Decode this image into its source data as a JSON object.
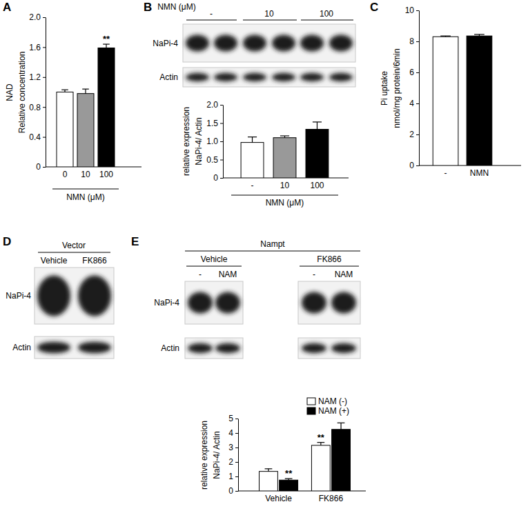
{
  "panels": [
    "A",
    "B",
    "C",
    "D",
    "E"
  ],
  "chart_data": [
    {
      "type": "bar",
      "y_label": [
        "NAD",
        "Relative concentration"
      ],
      "x_label": "NMN (μM)",
      "categories": [
        "0",
        "10",
        "100"
      ],
      "values": [
        1.0,
        0.98,
        1.59
      ],
      "errors": [
        0.03,
        0.06,
        0.05
      ],
      "significance": [
        null,
        null,
        "**"
      ],
      "colors": [
        "#ffffff",
        "#999999",
        "#000000"
      ],
      "ylim": [
        0,
        2
      ],
      "yticks": [
        0,
        0.4,
        0.8,
        1.2,
        1.6,
        {
          "value": 2,
          "label": "2.0"
        }
      ]
    },
    {
      "type": "bar",
      "y_label": [
        "relative expression",
        "NaPi-4/ Actin"
      ],
      "x_label": "NMN (μM)",
      "categories": [
        "-",
        "10",
        "100"
      ],
      "values": [
        0.97,
        1.1,
        1.33
      ],
      "errors": [
        0.15,
        0.05,
        0.2
      ],
      "colors": [
        "#ffffff",
        "#999999",
        "#000000"
      ],
      "ylim": [
        0,
        2
      ],
      "yticks": [
        0,
        0.5,
        {
          "value": 1,
          "label": "1.0"
        },
        1.5,
        {
          "value": 2,
          "label": "2.0"
        }
      ]
    },
    {
      "type": "bar",
      "y_label": [
        "Pi uptake",
        "nmol/mg protein/6min"
      ],
      "categories": [
        "-",
        "NMN"
      ],
      "values": [
        8.3,
        8.35
      ],
      "errors": [
        0.05,
        0.1
      ],
      "colors": [
        "#ffffff",
        "#000000"
      ],
      "ylim": [
        0,
        10
      ],
      "yticks": [
        0,
        2,
        4,
        6,
        8,
        10
      ]
    },
    {
      "type": "bar",
      "y_label": [
        "relative expression",
        "NaPi-4/ Actin"
      ],
      "categories": [
        "Vehicle",
        "FK866"
      ],
      "legend": "top-right",
      "series": [
        {
          "name": "NAM (-)",
          "color": "#ffffff",
          "values": [
            1.35,
            3.15
          ],
          "errors": [
            0.18,
            0.2
          ],
          "significance": [
            null,
            "**"
          ]
        },
        {
          "name": "NAM (+)",
          "color": "#000000",
          "values": [
            0.75,
            4.25
          ],
          "errors": [
            0.1,
            0.45
          ],
          "significance": [
            "**",
            null
          ]
        }
      ],
      "ylim": [
        0,
        5
      ],
      "yticks": [
        0,
        1,
        2,
        3,
        4,
        5
      ]
    }
  ],
  "blots": [
    {
      "header": "NMN (μM)",
      "groups": [
        "-",
        "10",
        "100"
      ],
      "rows": [
        "NaPi-4",
        "Actin"
      ]
    },
    {
      "header": "Vector",
      "groups": [
        "Vehicle",
        "FK866"
      ],
      "rows": [
        "NaPi-4",
        "Actin"
      ]
    },
    {
      "header": "Nampt",
      "groups": [
        "Vehicle",
        "FK866"
      ],
      "lanes": [
        "-",
        "NAM",
        "-",
        "NAM"
      ],
      "rows": [
        "NaPi-4",
        "Actin"
      ]
    }
  ]
}
